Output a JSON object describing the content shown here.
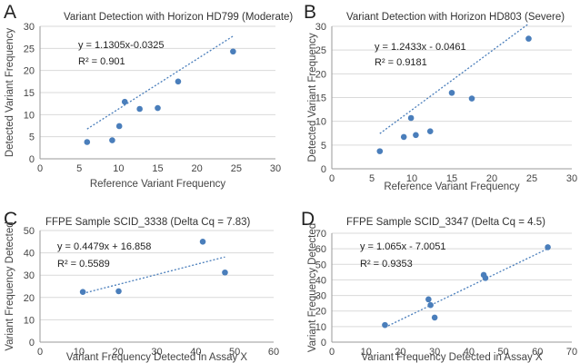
{
  "chart_data": [
    {
      "panel": "A",
      "type": "scatter",
      "title": "Variant Detection with Horizon HD799 (Moderate)",
      "xlabel": "Reference Variant Frequency",
      "ylabel": "Detected Variant Frequency",
      "xlim": [
        0,
        30
      ],
      "ylim": [
        0,
        30
      ],
      "xticks": [
        0,
        5,
        10,
        15,
        20,
        25,
        30
      ],
      "yticks": [
        0,
        5,
        10,
        15,
        20,
        25,
        30
      ],
      "grid": "horizontal",
      "equation": "y = 1.1305x-0.0325",
      "r2": "R² = 0.901",
      "trendline": {
        "slope": 1.1305,
        "intercept": -0.0325,
        "x_range": [
          6,
          24.6
        ]
      },
      "points": [
        {
          "x": 6,
          "y": 3.8
        },
        {
          "x": 9.2,
          "y": 4.2
        },
        {
          "x": 10.1,
          "y": 7.4
        },
        {
          "x": 10.8,
          "y": 12.9
        },
        {
          "x": 12.7,
          "y": 11.3
        },
        {
          "x": 15,
          "y": 11.5
        },
        {
          "x": 17.6,
          "y": 17.5
        },
        {
          "x": 24.6,
          "y": 24.3
        }
      ],
      "color": "#4a7ebb"
    },
    {
      "panel": "B",
      "type": "scatter",
      "title": "Variant Detection with Horizon HD803 (Severe)",
      "xlabel": "Reference Variant Frequency",
      "ylabel": "Detected Variant Frequency",
      "xlim": [
        0,
        30
      ],
      "ylim": [
        0,
        30
      ],
      "xticks": [
        0,
        5,
        10,
        15,
        20,
        25,
        30
      ],
      "yticks": [
        0,
        5,
        10,
        15,
        20,
        25,
        30
      ],
      "grid": "horizontal",
      "equation": "y = 1.2433x - 0.0461",
      "r2": "R² = 0.9181",
      "trendline": {
        "slope": 1.2433,
        "intercept": -0.0461,
        "x_range": [
          6,
          24.6
        ]
      },
      "points": [
        {
          "x": 6,
          "y": 3.7
        },
        {
          "x": 9,
          "y": 6.7
        },
        {
          "x": 9.9,
          "y": 10.7
        },
        {
          "x": 10.5,
          "y": 7.1
        },
        {
          "x": 12.3,
          "y": 7.9
        },
        {
          "x": 15,
          "y": 16
        },
        {
          "x": 17.5,
          "y": 14.8
        },
        {
          "x": 24.6,
          "y": 27.4
        }
      ],
      "color": "#4a7ebb"
    },
    {
      "panel": "C",
      "type": "scatter",
      "title": "FFPE Sample SCID_3338 (Delta Cq = 7.83)",
      "xlabel": "Variant Frequency Detected in Assay X",
      "ylabel": "Variant Frequency Detected",
      "xlim": [
        0,
        60
      ],
      "ylim": [
        0,
        50
      ],
      "xticks": [
        0,
        10,
        20,
        30,
        40,
        50,
        60
      ],
      "yticks": [
        0,
        10,
        20,
        30,
        40,
        50
      ],
      "grid": "horizontal",
      "equation": "y = 0.4479x + 16.858",
      "r2": "R² = 0.5589",
      "trendline": {
        "slope": 0.4479,
        "intercept": 16.858,
        "x_range": [
          11,
          47.5
        ]
      },
      "points": [
        {
          "x": 11,
          "y": 22.5
        },
        {
          "x": 20.2,
          "y": 22.8
        },
        {
          "x": 41.8,
          "y": 45
        },
        {
          "x": 47.5,
          "y": 31.2
        }
      ],
      "color": "#4a7ebb"
    },
    {
      "panel": "D",
      "type": "scatter",
      "title": "FFPE Sample SCID_3347 (Delta Cq = 4.5)",
      "xlabel": "Variant Frequency Detected in Assay X",
      "ylabel": "Variant Frequency Detected",
      "xlim": [
        0,
        70
      ],
      "ylim": [
        0,
        70
      ],
      "xticks": [
        0,
        10,
        20,
        30,
        40,
        50,
        60,
        70
      ],
      "yticks": [
        0,
        10,
        20,
        30,
        40,
        50,
        60,
        70
      ],
      "grid": "horizontal",
      "equation": "y = 1.065x - 7.0051",
      "r2": "R² = 0.9353",
      "trendline": {
        "slope": 1.065,
        "intercept": -7.0051,
        "x_range": [
          15.5,
          63
        ]
      },
      "points": [
        {
          "x": 15.5,
          "y": 11
        },
        {
          "x": 28.2,
          "y": 27.5
        },
        {
          "x": 28.8,
          "y": 23.8
        },
        {
          "x": 30,
          "y": 15.8
        },
        {
          "x": 44.3,
          "y": 43.2
        },
        {
          "x": 44.8,
          "y": 41.2
        },
        {
          "x": 63,
          "y": 61
        }
      ],
      "color": "#4a7ebb"
    }
  ]
}
